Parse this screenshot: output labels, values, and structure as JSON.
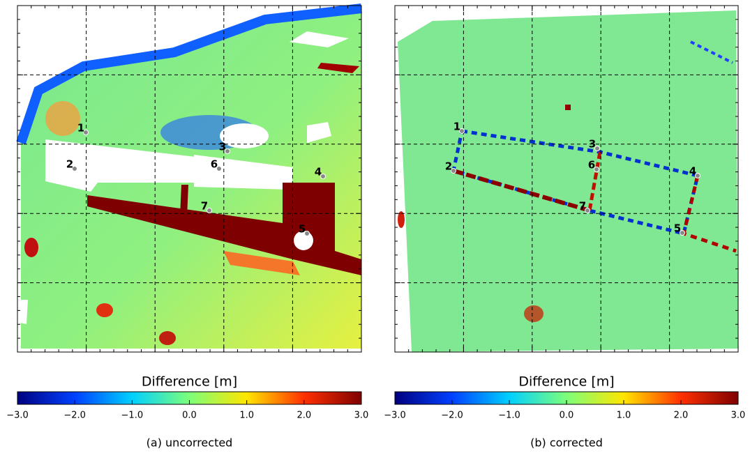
{
  "chart_data": [
    {
      "type": "heatmap",
      "colorbar_label": "Difference [m]",
      "caption": "(a) uncorrected",
      "zlim": [
        -3,
        3
      ],
      "zticks": [
        {
          "value": -3,
          "label": "−3.0"
        },
        {
          "value": -2,
          "label": "−2.0"
        },
        {
          "value": -1,
          "label": "−1.0"
        },
        {
          "value": 0,
          "label": "0.0"
        },
        {
          "value": 1,
          "label": "1.0"
        },
        {
          "value": 2,
          "label": "2.0"
        },
        {
          "value": 3,
          "label": "3.0"
        }
      ],
      "colormap": [
        "#00007f",
        "#0040ff",
        "#00d0ff",
        "#7cff7a",
        "#ffe600",
        "#ff3000",
        "#7f0000"
      ],
      "points": [
        "1",
        "2",
        "3",
        "4",
        "5",
        "6",
        "7"
      ]
    },
    {
      "type": "heatmap",
      "colorbar_label": "Difference [m]",
      "caption": "(b) corrected",
      "zlim": [
        -3,
        3
      ],
      "zticks": [
        {
          "value": -3,
          "label": "−3.0"
        },
        {
          "value": -2,
          "label": "−2.0"
        },
        {
          "value": -1,
          "label": "−1.0"
        },
        {
          "value": 0,
          "label": "0.0"
        },
        {
          "value": 1,
          "label": "1.0"
        },
        {
          "value": 2,
          "label": "2.0"
        },
        {
          "value": 3,
          "label": "3.0"
        }
      ],
      "colormap": [
        "#00007f",
        "#0040ff",
        "#00d0ff",
        "#7cff7a",
        "#ffe600",
        "#ff3000",
        "#7f0000"
      ],
      "points": [
        "1",
        "2",
        "3",
        "4",
        "5",
        "6",
        "7"
      ]
    }
  ]
}
